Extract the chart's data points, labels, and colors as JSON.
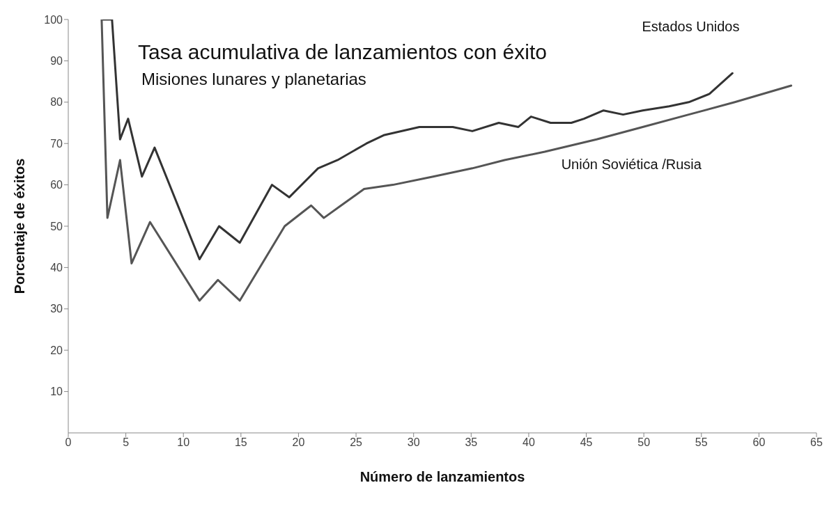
{
  "chart_data": {
    "type": "line",
    "title": "Tasa acumulativa de lanzamientos con éxito",
    "subtitle": "Misiones lunares y planetarias",
    "xlabel": "Número de lanzamientos",
    "ylabel": "Porcentaje de éxitos",
    "xlim": [
      0,
      65
    ],
    "xticks": [
      0,
      5,
      10,
      15,
      20,
      25,
      30,
      35,
      40,
      45,
      50,
      55,
      60,
      65
    ],
    "ylim": [
      0,
      100
    ],
    "yticks": [
      10,
      20,
      30,
      40,
      50,
      60,
      70,
      80,
      90,
      100
    ],
    "grid": false,
    "legend": false,
    "marker": "none",
    "line_style": "solid",
    "series": [
      {
        "name": "Estados Unidos",
        "color": "#333333",
        "x": [
          3,
          3.8,
          4.5,
          5.2,
          6.4,
          7.5,
          11.4,
          13.1,
          14.9,
          17.7,
          19.2,
          21.7,
          23.4,
          25.9,
          27.4,
          30.5,
          33.4,
          35.1,
          37.4,
          39.1,
          40.2,
          41.9,
          43.7,
          44.8,
          46.5,
          48.2,
          49.9,
          52.2,
          53.9,
          55.7,
          57.7
        ],
        "values": [
          100,
          100,
          71,
          76,
          62,
          69,
          42,
          50,
          46,
          60,
          57,
          64,
          66,
          70,
          72,
          74,
          74,
          73,
          75,
          74,
          76.5,
          75,
          75,
          76,
          78,
          77,
          78,
          79,
          80,
          82,
          87
        ]
      },
      {
        "name": "Unión Soviética /Rusia",
        "color": "#555555",
        "x": [
          2.9,
          3.4,
          4.5,
          5.5,
          7.1,
          11.4,
          13,
          14.9,
          18.8,
          21.1,
          22.2,
          23.7,
          25.7,
          28.2,
          31.7,
          35.1,
          37.9,
          41.4,
          45.9,
          49.9,
          53.9,
          57.9,
          62.8
        ],
        "values": [
          100,
          52,
          66,
          41,
          51,
          32,
          37,
          32,
          50,
          55,
          52,
          55,
          59,
          60,
          62,
          64,
          66,
          68,
          71,
          74,
          77,
          80,
          84
        ]
      }
    ]
  }
}
